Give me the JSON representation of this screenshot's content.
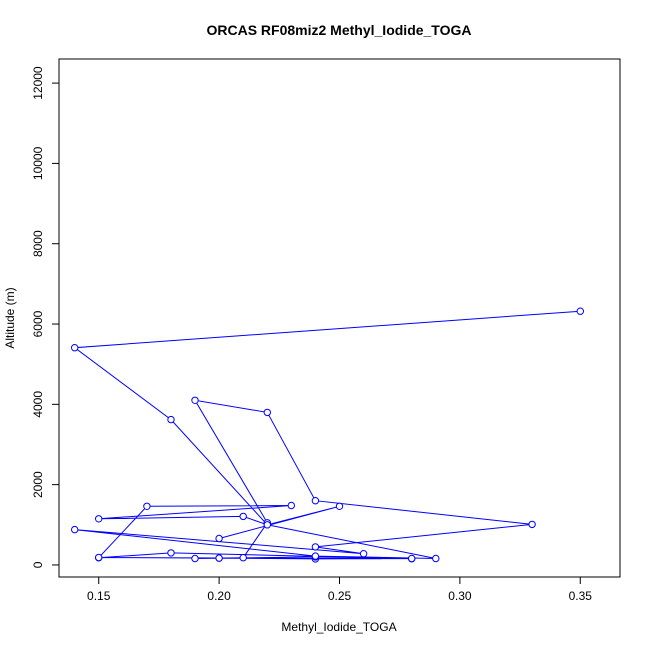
{
  "chart_data": {
    "type": "line",
    "title": "ORCAS RF08miz2 Methyl_Iodide_TOGA",
    "xlabel": "Methyl_Iodide_TOGA",
    "ylabel": "Altitude (m)",
    "xlim": [
      0.1335,
      0.3665
    ],
    "ylim": [
      -300,
      12600
    ],
    "x_ticks": [
      0.15,
      0.2,
      0.25,
      0.3,
      0.35
    ],
    "x_tick_labels": [
      "0.15",
      "0.20",
      "0.25",
      "0.30",
      "0.35"
    ],
    "y_ticks": [
      0,
      2000,
      4000,
      6000,
      8000,
      10000,
      12000
    ],
    "y_tick_labels": [
      "0",
      "2000",
      "4000",
      "6000",
      "8000",
      "10000",
      "12000"
    ],
    "grid": false,
    "marker": "open-circle",
    "color": "#0000ff",
    "series": [
      {
        "x": [
          0.35,
          0.14,
          0.18,
          0.22,
          0.21,
          0.15,
          0.23,
          0.17,
          0.15,
          0.18,
          0.28,
          0.15,
          0.2,
          0.24,
          0.28,
          0.24,
          0.19,
          0.2,
          0.21,
          0.22,
          0.19,
          0.22,
          0.24,
          0.33,
          0.24,
          0.26,
          0.14,
          0.24,
          0.29,
          0.22,
          0.25,
          0.2
        ],
        "y": [
          6320,
          5410,
          3620,
          1000,
          1210,
          1150,
          1480,
          1460,
          180,
          300,
          155,
          185,
          170,
          150,
          160,
          200,
          160,
          170,
          180,
          1050,
          4100,
          3800,
          1600,
          1010,
          450,
          280,
          880,
          220,
          160,
          1000,
          1460,
          660
        ]
      }
    ]
  }
}
